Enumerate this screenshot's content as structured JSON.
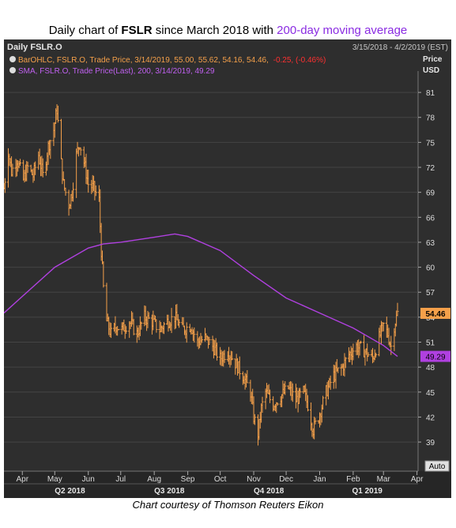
{
  "header": {
    "prefix": "Daily chart of ",
    "ticker": "FSLR",
    "middle": " since March 2018 with ",
    "sma_text": "200-day moving average",
    "sma_color": "#8a2be2"
  },
  "panel": {
    "name": "Daily FSLR.O",
    "date_range": "3/15/2018 - 4/2/2019 (EST)",
    "axis_title_line1": "Price",
    "axis_title_line2": "USD",
    "auto_label": "Auto"
  },
  "legend": {
    "ohlc_label": "BarOHLC, FSLR.O, Trade Price, 3/14/2019, 55.00, 55.62, 54.16, 54.46,",
    "ohlc_change": "-0.25, (-0.46%)",
    "sma_label": "SMA, FSLR.O, Trade Price(Last), 200, 3/14/2019, 49.29"
  },
  "caption": "Chart courtesy of Thomson Reuters Eikon",
  "colors": {
    "background": "#2e2e2e",
    "price": "#f5a04a",
    "sma": "#b040e0",
    "change": "#ff3030",
    "price_tag": "#f5a04a",
    "sma_tag": "#b040e0"
  },
  "chart_data": {
    "type": "line",
    "title": "Daily FSLR.O",
    "ylabel": "Price USD",
    "ylim": [
      35.5,
      83
    ],
    "y_ticks": [
      39,
      42,
      45,
      48,
      51,
      54,
      57,
      60,
      63,
      66,
      69,
      72,
      75,
      78,
      81
    ],
    "x_month_ticks": [
      {
        "label": "Apr",
        "date": "2018-04-01"
      },
      {
        "label": "May",
        "date": "2018-05-01"
      },
      {
        "label": "Jun",
        "date": "2018-06-01"
      },
      {
        "label": "Jul",
        "date": "2018-07-01"
      },
      {
        "label": "Aug",
        "date": "2018-08-01"
      },
      {
        "label": "Sep",
        "date": "2018-09-01"
      },
      {
        "label": "Oct",
        "date": "2018-10-01"
      },
      {
        "label": "Nov",
        "date": "2018-11-01"
      },
      {
        "label": "Dec",
        "date": "2018-12-01"
      },
      {
        "label": "Jan",
        "date": "2019-01-01"
      },
      {
        "label": "Feb",
        "date": "2019-02-01"
      },
      {
        "label": "Mar",
        "date": "2019-03-01"
      },
      {
        "label": "Apr",
        "date": "2019-04-01"
      }
    ],
    "x_quarter_labels": [
      {
        "label": "Q2 2018",
        "date": "2018-05-15"
      },
      {
        "label": "Q3 2018",
        "date": "2018-08-15"
      },
      {
        "label": "Q4 2018",
        "date": "2018-11-15"
      },
      {
        "label": "Q1 2019",
        "date": "2019-02-14"
      }
    ],
    "x_range": [
      "2018-03-15",
      "2019-04-02"
    ],
    "price_series": {
      "name": "BarOHLC, FSLR.O, Trade Price",
      "points": [
        [
          "2018-03-15",
          69.5
        ],
        [
          "2018-03-19",
          74.0
        ],
        [
          "2018-03-22",
          71.5
        ],
        [
          "2018-03-27",
          73.0
        ],
        [
          "2018-04-02",
          70.5
        ],
        [
          "2018-04-06",
          72.0
        ],
        [
          "2018-04-11",
          71.0
        ],
        [
          "2018-04-16",
          73.5
        ],
        [
          "2018-04-20",
          71.0
        ],
        [
          "2018-04-25",
          74.5
        ],
        [
          "2018-04-30",
          76.5
        ],
        [
          "2018-05-03",
          79.0
        ],
        [
          "2018-05-07",
          72.5
        ],
        [
          "2018-05-09",
          70.0
        ],
        [
          "2018-05-14",
          67.5
        ],
        [
          "2018-05-17",
          69.0
        ],
        [
          "2018-05-21",
          73.5
        ],
        [
          "2018-05-24",
          75.0
        ],
        [
          "2018-05-29",
          72.0
        ],
        [
          "2018-06-01",
          70.0
        ],
        [
          "2018-06-06",
          69.5
        ],
        [
          "2018-06-11",
          68.0
        ],
        [
          "2018-06-13",
          62.0
        ],
        [
          "2018-06-15",
          57.5
        ],
        [
          "2018-06-18",
          53.5
        ],
        [
          "2018-06-22",
          52.0
        ],
        [
          "2018-06-27",
          53.0
        ],
        [
          "2018-07-02",
          52.5
        ],
        [
          "2018-07-09",
          53.5
        ],
        [
          "2018-07-16",
          52.0
        ],
        [
          "2018-07-23",
          54.0
        ],
        [
          "2018-07-30",
          53.5
        ],
        [
          "2018-08-06",
          52.5
        ],
        [
          "2018-08-13",
          53.5
        ],
        [
          "2018-08-20",
          54.0
        ],
        [
          "2018-08-27",
          52.5
        ],
        [
          "2018-09-04",
          53.0
        ],
        [
          "2018-09-10",
          51.0
        ],
        [
          "2018-09-17",
          51.5
        ],
        [
          "2018-09-24",
          50.5
        ],
        [
          "2018-10-01",
          49.0
        ],
        [
          "2018-10-08",
          50.0
        ],
        [
          "2018-10-15",
          48.5
        ],
        [
          "2018-10-22",
          47.0
        ],
        [
          "2018-10-29",
          45.0
        ],
        [
          "2018-11-01",
          42.0
        ],
        [
          "2018-11-05",
          40.0
        ],
        [
          "2018-11-08",
          43.0
        ],
        [
          "2018-11-12",
          45.0
        ],
        [
          "2018-11-19",
          43.5
        ],
        [
          "2018-11-26",
          44.5
        ],
        [
          "2018-12-03",
          45.5
        ],
        [
          "2018-12-10",
          44.0
        ],
        [
          "2018-12-17",
          45.0
        ],
        [
          "2018-12-21",
          43.5
        ],
        [
          "2018-12-26",
          40.5
        ],
        [
          "2018-12-31",
          42.0
        ],
        [
          "2019-01-07",
          45.0
        ],
        [
          "2019-01-14",
          47.0
        ],
        [
          "2019-01-22",
          48.0
        ],
        [
          "2019-01-28",
          49.5
        ],
        [
          "2019-02-04",
          50.5
        ],
        [
          "2019-02-11",
          50.0
        ],
        [
          "2019-02-19",
          49.0
        ],
        [
          "2019-02-25",
          51.5
        ],
        [
          "2019-03-01",
          53.0
        ],
        [
          "2019-03-05",
          52.0
        ],
        [
          "2019-03-08",
          50.5
        ],
        [
          "2019-03-11",
          53.0
        ],
        [
          "2019-03-14",
          54.46
        ]
      ]
    },
    "sma_series": {
      "name": "SMA, FSLR.O, Trade Price(Last), 200",
      "points": [
        [
          "2018-03-15",
          54.5
        ],
        [
          "2018-04-01",
          56.5
        ],
        [
          "2018-05-01",
          60.0
        ],
        [
          "2018-06-01",
          62.3
        ],
        [
          "2018-06-15",
          62.8
        ],
        [
          "2018-07-01",
          63.0
        ],
        [
          "2018-08-01",
          63.6
        ],
        [
          "2018-08-20",
          64.0
        ],
        [
          "2018-09-01",
          63.7
        ],
        [
          "2018-10-01",
          62.0
        ],
        [
          "2018-11-01",
          59.0
        ],
        [
          "2018-12-01",
          56.3
        ],
        [
          "2019-01-01",
          54.5
        ],
        [
          "2019-02-01",
          52.7
        ],
        [
          "2019-03-01",
          50.6
        ],
        [
          "2019-03-14",
          49.29
        ]
      ]
    },
    "last_price_tag": "54.46",
    "last_sma_tag": "49.29",
    "last_price": 54.46,
    "last_sma": 49.29
  }
}
